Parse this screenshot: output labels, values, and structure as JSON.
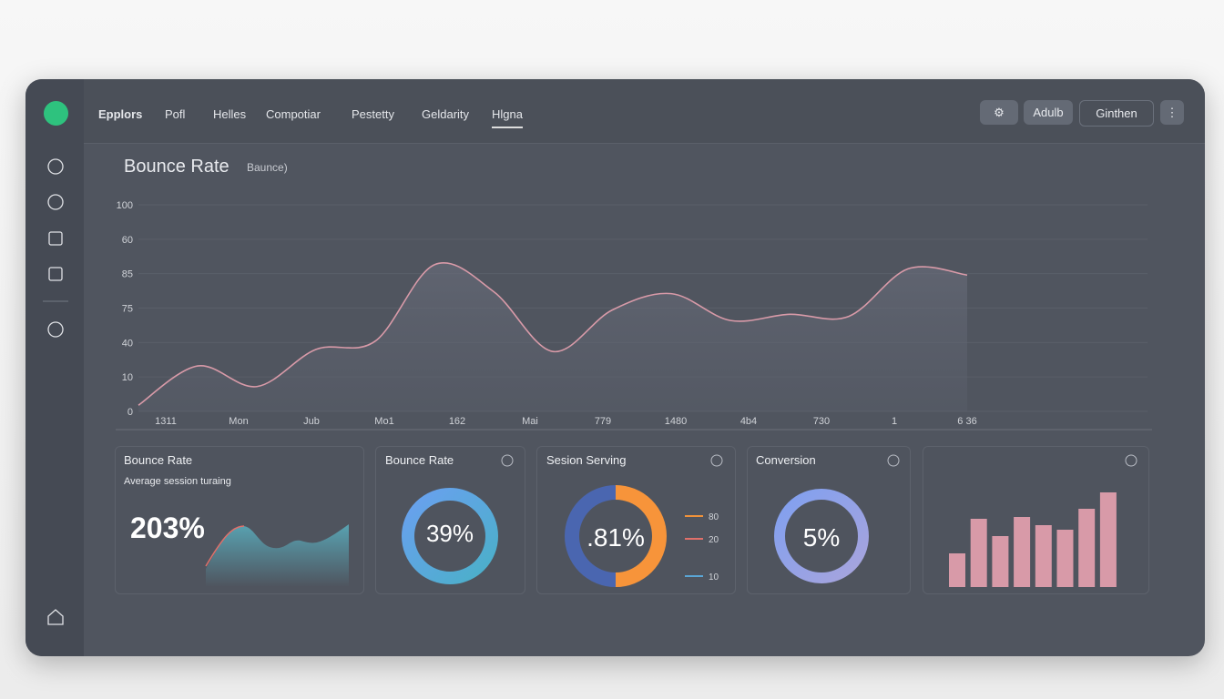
{
  "nav": {
    "brand": "Epplors",
    "items": [
      "Pofl",
      "Helles",
      "Compotiar",
      "Pestetty",
      "Geldarity",
      "Hlgna"
    ],
    "buttons": [
      "Adulb",
      "Ginthen"
    ]
  },
  "main_chart": {
    "type": "line",
    "title": "Bounce Rate",
    "subtitle": "Baunce)",
    "color": "#d89aa8",
    "y_labels": [
      "100",
      "60",
      "85",
      "75",
      "40",
      "10",
      "0"
    ],
    "x_labels": [
      "1311",
      "Mon",
      "Jub",
      "Mo1",
      "162",
      "Mai",
      "779",
      "1480",
      "4b4",
      "730",
      "1",
      "6 36"
    ],
    "values": [
      3,
      22,
      12,
      30,
      34,
      71,
      58,
      29,
      49,
      57,
      44,
      47,
      46,
      69,
      66
    ],
    "ylim": [
      0,
      100
    ]
  },
  "cards": [
    {
      "title": "Bounce Rate",
      "subtitle": "Average session turaing",
      "value": "203%"
    },
    {
      "title": "Bounce Rate",
      "value": "39%"
    },
    {
      "title": "Sesion Serving",
      "value": ".81%",
      "legend": [
        {
          "label": "80",
          "color": "#f0923a"
        },
        {
          "label": "20",
          "color": "#e0706a"
        },
        {
          "label": "10",
          "color": "#5aa6d6"
        }
      ]
    },
    {
      "title": "Conversion",
      "value": "5%"
    },
    {
      "type": "bar",
      "color": "#d89aa8",
      "values": [
        37,
        75,
        56,
        77,
        68,
        63,
        86,
        104
      ]
    }
  ]
}
